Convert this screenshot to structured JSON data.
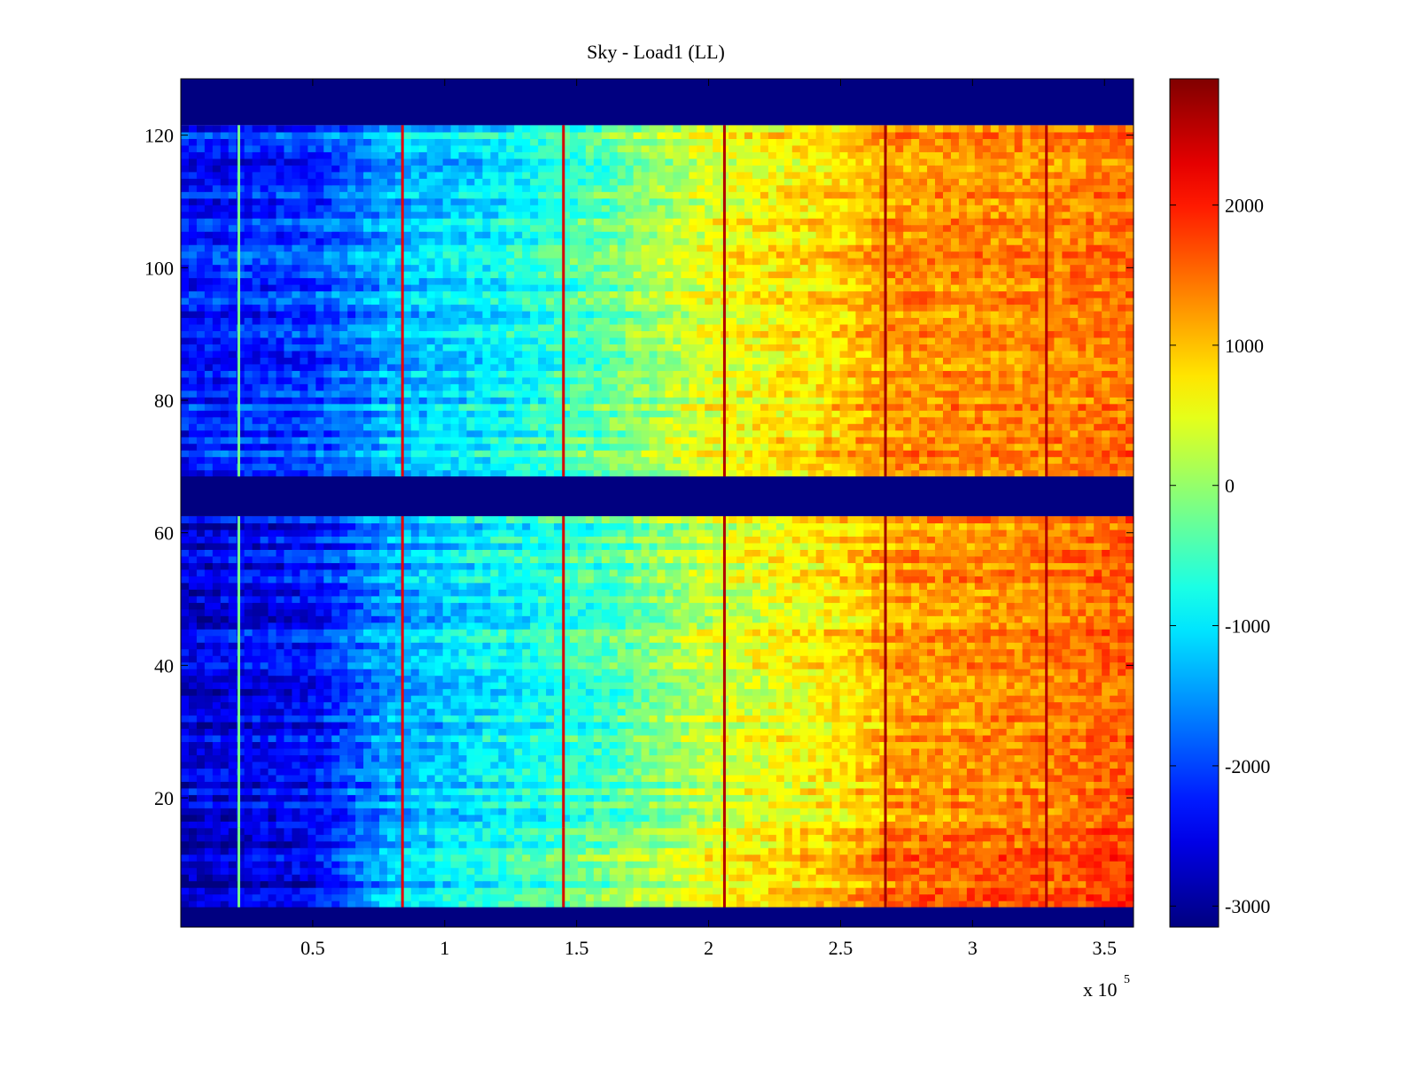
{
  "chart_data": {
    "type": "heatmap",
    "title": "Sky - Load1 (LL)",
    "xlabel": "",
    "ylabel": "",
    "x_exponent_label": "x 10",
    "x_exponent_power": "5",
    "xlim": [
      0,
      3.61
    ],
    "ylim": [
      0.5,
      128.5
    ],
    "x_ticks": [
      0.5,
      1,
      1.5,
      2,
      2.5,
      3,
      3.5
    ],
    "x_tick_labels": [
      "0.5",
      "1",
      "1.5",
      "2",
      "2.5",
      "3",
      "3.5"
    ],
    "y_ticks": [
      20,
      40,
      60,
      80,
      100,
      120
    ],
    "y_tick_labels": [
      "20",
      "40",
      "60",
      "80",
      "100",
      "120"
    ],
    "colorbar": {
      "colormap": "jet",
      "range": [
        -3150,
        2900
      ],
      "ticks": [
        -3000,
        -2000,
        -1000,
        0,
        1000,
        2000
      ],
      "tick_labels": [
        "-3000",
        "-2000",
        "-1000",
        "0",
        "1000",
        "2000"
      ]
    },
    "flagged_rows": [
      [
        0.5,
        3.5
      ],
      [
        62.5,
        68.5
      ],
      [
        121.5,
        128.5
      ]
    ],
    "row_blocks": [
      {
        "name": "block-low",
        "rows": [
          4,
          15
        ],
        "profile": [
          [
            0,
            -2900
          ],
          [
            0.5,
            -2500
          ],
          [
            0.8,
            -1200
          ],
          [
            1.2,
            -700
          ],
          [
            1.6,
            -200
          ],
          [
            2.0,
            500
          ],
          [
            2.5,
            1000
          ],
          [
            2.7,
            1500
          ],
          [
            3.3,
            1600
          ],
          [
            3.6,
            1800
          ]
        ]
      },
      {
        "name": "block-mid-low",
        "rows": [
          16,
          62
        ],
        "profile": [
          [
            0,
            -2600
          ],
          [
            0.5,
            -2300
          ],
          [
            0.8,
            -1400
          ],
          [
            1.2,
            -900
          ],
          [
            1.6,
            -500
          ],
          [
            2.0,
            300
          ],
          [
            2.5,
            800
          ],
          [
            2.7,
            1200
          ],
          [
            3.3,
            1400
          ],
          [
            3.6,
            1600
          ]
        ]
      },
      {
        "name": "block-upper",
        "rows": [
          69,
          121
        ],
        "profile": [
          [
            0,
            -2300
          ],
          [
            0.5,
            -2000
          ],
          [
            0.8,
            -1300
          ],
          [
            1.2,
            -900
          ],
          [
            1.6,
            -300
          ],
          [
            2.0,
            500
          ],
          [
            2.5,
            900
          ],
          [
            2.7,
            1300
          ],
          [
            3.3,
            1350
          ],
          [
            3.6,
            1500
          ]
        ]
      }
    ],
    "vertical_lines": [
      {
        "x": 0.22,
        "value": -200
      },
      {
        "x": 0.84,
        "value": 2300
      },
      {
        "x": 1.45,
        "value": 2400
      },
      {
        "x": 2.06,
        "value": 2600
      },
      {
        "x": 2.67,
        "value": 2700
      },
      {
        "x": 3.28,
        "value": 2600
      }
    ]
  }
}
